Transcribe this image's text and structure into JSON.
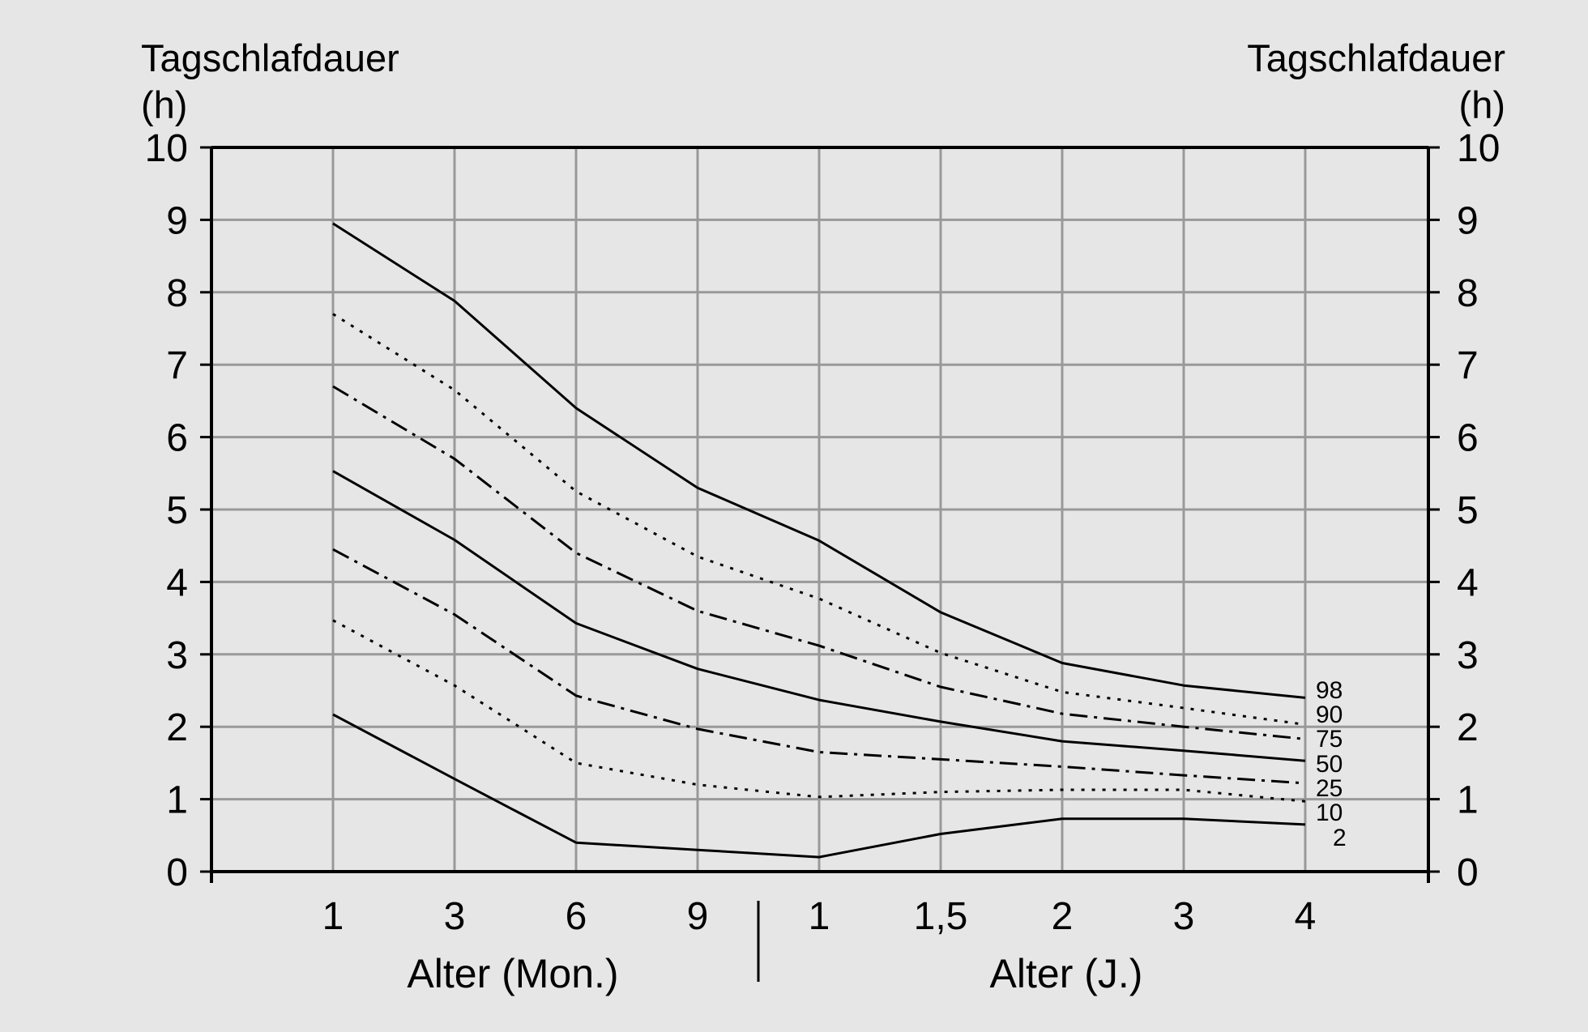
{
  "chart_data": {
    "type": "line",
    "ylabel_left": [
      "Tagschlafdauer",
      "(h)"
    ],
    "ylabel_right": [
      "Tagschlafdauer",
      "(h)"
    ],
    "xlabel_left": "Alter (Mon.)",
    "xlabel_right": "Alter (J.)",
    "ylim": [
      0,
      10
    ],
    "yticks": [
      "0",
      "1",
      "2",
      "3",
      "4",
      "5",
      "6",
      "7",
      "8",
      "9",
      "10"
    ],
    "categories": [
      "1",
      "3",
      "6",
      "9",
      "1",
      "1,5",
      "2",
      "3",
      "4"
    ],
    "grid": true,
    "series": [
      {
        "name": "98",
        "style": "solid",
        "values": [
          8.95,
          7.88,
          6.4,
          5.3,
          4.57,
          3.58,
          2.88,
          2.57,
          2.4
        ]
      },
      {
        "name": "90",
        "style": "dotted",
        "values": [
          7.7,
          6.65,
          5.25,
          4.35,
          3.77,
          3.02,
          2.48,
          2.26,
          2.03
        ]
      },
      {
        "name": "75",
        "style": "dashdot",
        "values": [
          6.7,
          5.7,
          4.4,
          3.6,
          3.12,
          2.55,
          2.18,
          2.0,
          1.83
        ]
      },
      {
        "name": "50",
        "style": "solid",
        "values": [
          5.53,
          4.58,
          3.43,
          2.8,
          2.37,
          2.07,
          1.8,
          1.67,
          1.53
        ]
      },
      {
        "name": "25",
        "style": "dashdot",
        "values": [
          4.45,
          3.55,
          2.43,
          1.97,
          1.65,
          1.55,
          1.45,
          1.33,
          1.22
        ]
      },
      {
        "name": "10",
        "style": "dotted",
        "values": [
          3.47,
          2.57,
          1.5,
          1.2,
          1.03,
          1.1,
          1.13,
          1.13,
          0.97
        ]
      },
      {
        "name": "2",
        "style": "solid",
        "values": [
          2.17,
          1.28,
          0.4,
          0.3,
          0.2,
          0.52,
          0.73,
          0.73,
          0.65
        ]
      }
    ]
  }
}
